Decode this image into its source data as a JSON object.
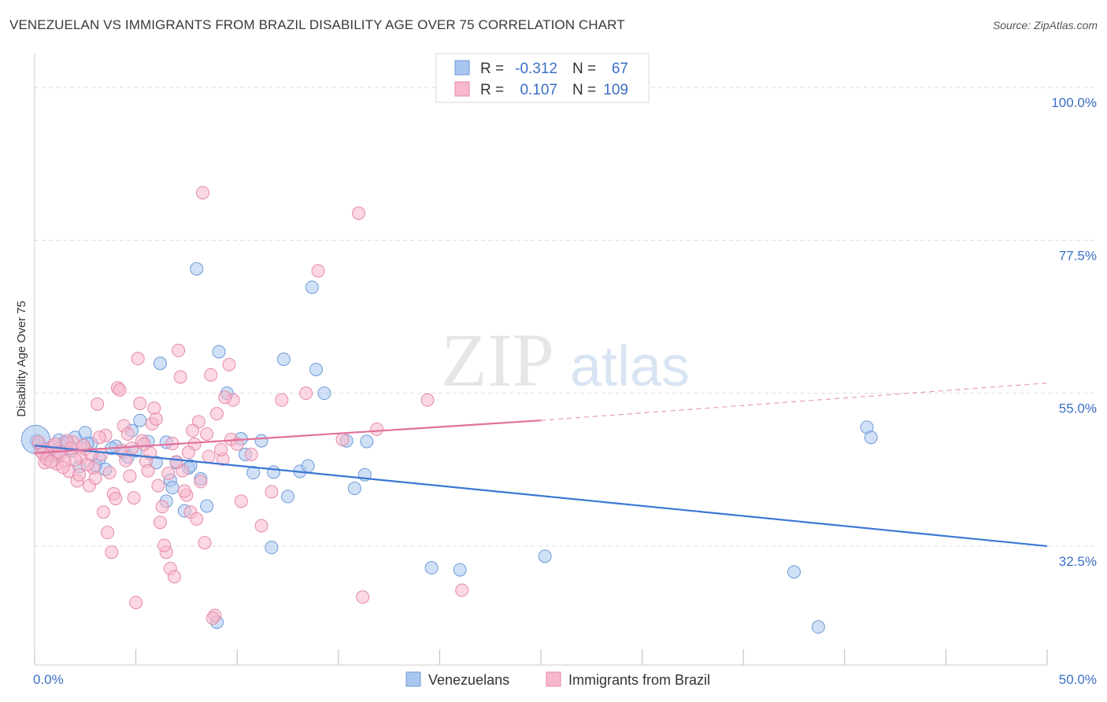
{
  "chart_data": {
    "type": "scatter",
    "title": "VENEZUELAN VS IMMIGRANTS FROM BRAZIL DISABILITY AGE OVER 75 CORRELATION CHART",
    "source": "Source: ZipAtlas.com",
    "ylabel": "Disability Age Over 75",
    "xlabel": "",
    "xlim": [
      0,
      50
    ],
    "ylim": [
      15,
      105
    ],
    "x_tick_labels": [
      "0.0%",
      "50.0%"
    ],
    "y_ticks": [
      {
        "value": 100,
        "label": "100.0%"
      },
      {
        "value": 77.5,
        "label": "77.5%"
      },
      {
        "value": 55,
        "label": "55.0%"
      },
      {
        "value": 32.5,
        "label": "32.5%"
      }
    ],
    "watermark": {
      "zip": "ZIP",
      "atlas": "atlas"
    },
    "legend": {
      "r_label": "R =",
      "n_label": "N =",
      "rows": [
        {
          "name": "Venezuelans",
          "r": "-0.312",
          "n": "67",
          "fill": "#a9c6ef",
          "stroke": "#6f9ad8"
        },
        {
          "name": "Immigrants from Brazil",
          "r": "0.107",
          "n": "109",
          "fill": "#f7b8cc",
          "stroke": "#e58aa8"
        }
      ]
    },
    "colors": {
      "blue": "#3a78d4",
      "pink": "#e0709a",
      "grid": "#dddddd",
      "value_text": "#3a6fc4"
    },
    "series": [
      {
        "name": "Venezuelans",
        "trend": {
          "x0": 0,
          "y0": 47.3,
          "x1": 50,
          "y1": 32.5
        },
        "points": [
          [
            0.2,
            47.5
          ],
          [
            0.4,
            46.8
          ],
          [
            0.6,
            46.2
          ],
          [
            0.8,
            47.0
          ],
          [
            1.0,
            45.8
          ],
          [
            1.2,
            48.1
          ],
          [
            1.5,
            47.8
          ],
          [
            1.8,
            46.5
          ],
          [
            2.0,
            48.5
          ],
          [
            2.2,
            44.2
          ],
          [
            2.5,
            49.2
          ],
          [
            2.8,
            47.6
          ],
          [
            3.2,
            45.4
          ],
          [
            3.5,
            43.8
          ],
          [
            4.0,
            47.2
          ],
          [
            4.4,
            46.3
          ],
          [
            4.8,
            49.5
          ],
          [
            5.2,
            51.0
          ],
          [
            5.6,
            47.9
          ],
          [
            6.0,
            44.8
          ],
          [
            6.2,
            59.4
          ],
          [
            6.5,
            39.1
          ],
          [
            6.7,
            42.2
          ],
          [
            6.8,
            41.1
          ],
          [
            7.0,
            44.8
          ],
          [
            7.4,
            37.7
          ],
          [
            7.6,
            44.0
          ],
          [
            8.0,
            73.3
          ],
          [
            8.2,
            42.4
          ],
          [
            8.5,
            38.4
          ],
          [
            9.0,
            21.3
          ],
          [
            9.1,
            61.1
          ],
          [
            10.2,
            48.3
          ],
          [
            10.4,
            46.0
          ],
          [
            10.8,
            43.3
          ],
          [
            11.2,
            48.0
          ],
          [
            11.7,
            32.3
          ],
          [
            11.8,
            43.4
          ],
          [
            12.3,
            60.0
          ],
          [
            12.5,
            39.8
          ],
          [
            13.1,
            43.5
          ],
          [
            13.5,
            44.3
          ],
          [
            13.7,
            70.6
          ],
          [
            13.9,
            58.5
          ],
          [
            14.3,
            55.0
          ],
          [
            15.4,
            48.0
          ],
          [
            15.8,
            41.0
          ],
          [
            16.3,
            43.0
          ],
          [
            16.4,
            47.9
          ],
          [
            19.6,
            29.3
          ],
          [
            21.0,
            29.0
          ],
          [
            25.2,
            31.0
          ],
          [
            37.5,
            28.7
          ],
          [
            38.7,
            20.6
          ],
          [
            41.1,
            50.0
          ],
          [
            41.3,
            48.5
          ],
          [
            5.0,
            46.5
          ],
          [
            3.0,
            44.4
          ],
          [
            1.1,
            46.0
          ],
          [
            0.1,
            48.0
          ],
          [
            2.6,
            47.6
          ],
          [
            6.5,
            47.8
          ],
          [
            4.6,
            45.6
          ],
          [
            9.5,
            55.0
          ],
          [
            7.7,
            44.3
          ],
          [
            1.6,
            47.6
          ],
          [
            3.8,
            46.9
          ]
        ]
      },
      {
        "name": "Immigrants from Brazil",
        "trend": {
          "x0": 0,
          "y0": 46.2,
          "x1": 25,
          "y1": 51.0,
          "dash_to_x": 50,
          "dash_to_y": 56.5
        },
        "points": [
          [
            0.3,
            46.5
          ],
          [
            0.5,
            44.8
          ],
          [
            0.7,
            45.9
          ],
          [
            0.9,
            47.2
          ],
          [
            1.1,
            44.6
          ],
          [
            1.3,
            46.1
          ],
          [
            1.5,
            45.0
          ],
          [
            1.7,
            43.5
          ],
          [
            1.9,
            47.8
          ],
          [
            2.1,
            42.1
          ],
          [
            2.3,
            45.5
          ],
          [
            2.5,
            46.8
          ],
          [
            2.7,
            41.4
          ],
          [
            2.9,
            44.0
          ],
          [
            3.1,
            53.4
          ],
          [
            3.3,
            46.0
          ],
          [
            3.5,
            48.8
          ],
          [
            3.7,
            43.3
          ],
          [
            3.9,
            40.2
          ],
          [
            4.1,
            55.8
          ],
          [
            4.3,
            46.6
          ],
          [
            4.5,
            45.1
          ],
          [
            4.7,
            42.8
          ],
          [
            4.9,
            39.6
          ],
          [
            5.1,
            60.1
          ],
          [
            5.3,
            48.0
          ],
          [
            5.5,
            45.0
          ],
          [
            5.7,
            46.2
          ],
          [
            5.9,
            52.8
          ],
          [
            6.1,
            41.4
          ],
          [
            6.3,
            38.3
          ],
          [
            6.5,
            31.6
          ],
          [
            6.7,
            29.2
          ],
          [
            6.9,
            28.0
          ],
          [
            7.1,
            61.3
          ],
          [
            7.3,
            43.6
          ],
          [
            7.5,
            40.0
          ],
          [
            7.7,
            37.5
          ],
          [
            7.9,
            47.5
          ],
          [
            8.1,
            50.8
          ],
          [
            8.3,
            84.5
          ],
          [
            8.5,
            49.0
          ],
          [
            8.7,
            57.7
          ],
          [
            8.9,
            22.3
          ],
          [
            9.3,
            45.3
          ],
          [
            9.6,
            59.2
          ],
          [
            9.8,
            54.0
          ],
          [
            10.2,
            39.1
          ],
          [
            10.7,
            46.0
          ],
          [
            11.2,
            35.5
          ],
          [
            11.7,
            40.5
          ],
          [
            12.2,
            54.0
          ],
          [
            13.4,
            55.0
          ],
          [
            14.0,
            73.0
          ],
          [
            15.2,
            48.2
          ],
          [
            16.0,
            81.5
          ],
          [
            16.2,
            25.0
          ],
          [
            16.9,
            49.7
          ],
          [
            19.4,
            54.0
          ],
          [
            21.1,
            26.0
          ],
          [
            0.2,
            47.8
          ],
          [
            0.4,
            46.1
          ],
          [
            0.6,
            45.3
          ],
          [
            0.8,
            44.9
          ],
          [
            1.0,
            47.5
          ],
          [
            1.2,
            46.3
          ],
          [
            1.4,
            44.1
          ],
          [
            1.6,
            48.0
          ],
          [
            1.8,
            46.9
          ],
          [
            2.0,
            45.2
          ],
          [
            2.2,
            43.0
          ],
          [
            2.4,
            47.3
          ],
          [
            2.6,
            44.5
          ],
          [
            2.8,
            46.0
          ],
          [
            3.0,
            42.5
          ],
          [
            3.2,
            48.5
          ],
          [
            3.4,
            37.5
          ],
          [
            3.6,
            34.5
          ],
          [
            3.8,
            31.6
          ],
          [
            4.0,
            39.5
          ],
          [
            4.2,
            55.5
          ],
          [
            4.4,
            50.2
          ],
          [
            4.6,
            49.0
          ],
          [
            4.8,
            46.9
          ],
          [
            5.0,
            24.2
          ],
          [
            5.2,
            53.5
          ],
          [
            5.4,
            47.5
          ],
          [
            5.6,
            43.6
          ],
          [
            5.8,
            50.5
          ],
          [
            6.0,
            51.2
          ],
          [
            6.2,
            36.0
          ],
          [
            6.4,
            32.6
          ],
          [
            6.6,
            43.2
          ],
          [
            6.8,
            47.6
          ],
          [
            7.0,
            44.9
          ],
          [
            7.2,
            57.4
          ],
          [
            7.4,
            40.6
          ],
          [
            7.6,
            46.3
          ],
          [
            7.8,
            49.5
          ],
          [
            8.0,
            36.5
          ],
          [
            8.2,
            42.0
          ],
          [
            8.4,
            33.0
          ],
          [
            8.6,
            45.7
          ],
          [
            8.8,
            21.9
          ],
          [
            9.0,
            52.0
          ],
          [
            9.2,
            46.7
          ],
          [
            9.4,
            54.4
          ],
          [
            9.7,
            48.2
          ],
          [
            10.0,
            47.5
          ]
        ]
      }
    ],
    "bottom_legend": [
      "Venezuelans",
      "Immigrants from Brazil"
    ]
  }
}
